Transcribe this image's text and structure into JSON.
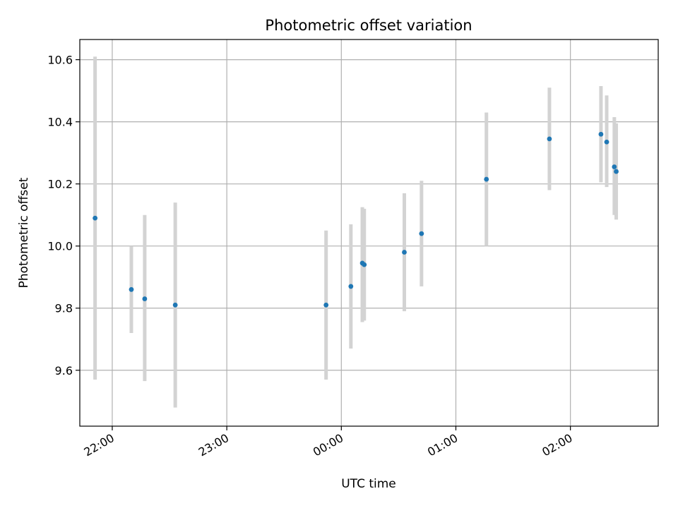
{
  "chart_data": {
    "type": "scatter",
    "title": "Photometric offset variation",
    "xlabel": "UTC time",
    "ylabel": "Photometric offset",
    "x_tick_labels": [
      "22:00",
      "23:00",
      "00:00",
      "01:00",
      "02:00"
    ],
    "x_ticks": [
      "22:00",
      "23:00",
      "24:00",
      "25:00",
      "26:00"
    ],
    "xlim": [
      "21:43",
      "26:46"
    ],
    "y_ticks": [
      9.6,
      9.8,
      10.0,
      10.2,
      10.4,
      10.6
    ],
    "y_tick_labels": [
      "9.6",
      "9.8",
      "10.0",
      "10.2",
      "10.4",
      "10.6"
    ],
    "ylim": [
      9.42,
      10.665
    ],
    "grid": true,
    "point_color": "#1f77b4",
    "errorbar_color": "#d3d3d3",
    "points": [
      {
        "x": "21:51",
        "y": 10.09,
        "ylow": 9.57,
        "yhigh": 10.61
      },
      {
        "x": "22:10",
        "y": 9.86,
        "ylow": 9.72,
        "yhigh": 10.0
      },
      {
        "x": "22:17",
        "y": 9.83,
        "ylow": 9.565,
        "yhigh": 10.1
      },
      {
        "x": "22:33",
        "y": 9.81,
        "ylow": 9.48,
        "yhigh": 10.14
      },
      {
        "x": "23:52",
        "y": 9.81,
        "ylow": 9.57,
        "yhigh": 10.05
      },
      {
        "x": "24:05",
        "y": 9.87,
        "ylow": 9.67,
        "yhigh": 10.07
      },
      {
        "x": "24:11",
        "y": 9.945,
        "ylow": 9.755,
        "yhigh": 10.125
      },
      {
        "x": "24:12",
        "y": 9.94,
        "ylow": 9.76,
        "yhigh": 10.12
      },
      {
        "x": "24:33",
        "y": 9.98,
        "ylow": 9.79,
        "yhigh": 10.17
      },
      {
        "x": "24:42",
        "y": 10.04,
        "ylow": 9.87,
        "yhigh": 10.21
      },
      {
        "x": "25:16",
        "y": 10.215,
        "ylow": 10.0,
        "yhigh": 10.43
      },
      {
        "x": "25:49",
        "y": 10.345,
        "ylow": 10.18,
        "yhigh": 10.51
      },
      {
        "x": "26:16",
        "y": 10.36,
        "ylow": 10.205,
        "yhigh": 10.515
      },
      {
        "x": "26:19",
        "y": 10.335,
        "ylow": 10.19,
        "yhigh": 10.485
      },
      {
        "x": "26:23",
        "y": 10.255,
        "ylow": 10.1,
        "yhigh": 10.415
      },
      {
        "x": "26:24",
        "y": 10.24,
        "ylow": 10.085,
        "yhigh": 10.395
      }
    ]
  }
}
